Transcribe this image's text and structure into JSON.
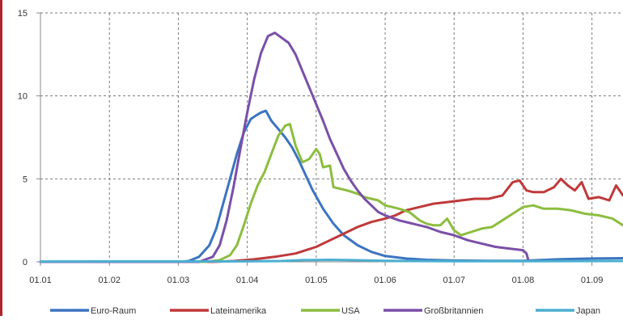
{
  "chart_data": {
    "type": "line",
    "title": "",
    "xlabel": "",
    "ylabel": "",
    "ylim": [
      0,
      15
    ],
    "yticks": [
      "0",
      "5",
      "10",
      "15"
    ],
    "xticks": [
      "01.01",
      "01.02",
      "01.03",
      "01.04",
      "01.05",
      "01.06",
      "01.07",
      "01.08",
      "01.09"
    ],
    "xlim": [
      1,
      9.45
    ],
    "grid": true,
    "legend": "bottom",
    "series": [
      {
        "name": "Euro-Raum",
        "color": "#3c74c0",
        "points": [
          [
            1,
            0
          ],
          [
            3.0,
            0
          ],
          [
            3.15,
            0.05
          ],
          [
            3.3,
            0.3
          ],
          [
            3.45,
            1.0
          ],
          [
            3.55,
            2.0
          ],
          [
            3.65,
            3.5
          ],
          [
            3.75,
            5.0
          ],
          [
            3.85,
            6.5
          ],
          [
            3.95,
            7.8
          ],
          [
            4.05,
            8.6
          ],
          [
            4.12,
            8.8
          ],
          [
            4.2,
            9.0
          ],
          [
            4.27,
            9.1
          ],
          [
            4.35,
            8.5
          ],
          [
            4.45,
            8.0
          ],
          [
            4.55,
            7.5
          ],
          [
            4.65,
            6.9
          ],
          [
            4.75,
            6.1
          ],
          [
            4.85,
            5.2
          ],
          [
            4.95,
            4.3
          ],
          [
            5.1,
            3.2
          ],
          [
            5.25,
            2.3
          ],
          [
            5.4,
            1.6
          ],
          [
            5.6,
            1.0
          ],
          [
            5.8,
            0.6
          ],
          [
            6.0,
            0.35
          ],
          [
            6.3,
            0.2
          ],
          [
            6.6,
            0.12
          ],
          [
            7.0,
            0.08
          ],
          [
            7.5,
            0.06
          ],
          [
            8.0,
            0.06
          ],
          [
            8.5,
            0.15
          ],
          [
            9.0,
            0.2
          ],
          [
            9.45,
            0.22
          ]
        ]
      },
      {
        "name": "Lateinamerika",
        "color": "#c0393a",
        "points": [
          [
            1,
            0
          ],
          [
            3.5,
            0
          ],
          [
            3.8,
            0.05
          ],
          [
            4.1,
            0.15
          ],
          [
            4.4,
            0.3
          ],
          [
            4.7,
            0.5
          ],
          [
            5.0,
            0.9
          ],
          [
            5.2,
            1.3
          ],
          [
            5.4,
            1.7
          ],
          [
            5.6,
            2.1
          ],
          [
            5.8,
            2.4
          ],
          [
            6.0,
            2.6
          ],
          [
            6.15,
            2.8
          ],
          [
            6.3,
            3.1
          ],
          [
            6.5,
            3.3
          ],
          [
            6.7,
            3.5
          ],
          [
            6.9,
            3.6
          ],
          [
            7.1,
            3.7
          ],
          [
            7.3,
            3.8
          ],
          [
            7.5,
            3.8
          ],
          [
            7.7,
            4.0
          ],
          [
            7.85,
            4.8
          ],
          [
            7.95,
            4.9
          ],
          [
            8.05,
            4.3
          ],
          [
            8.15,
            4.2
          ],
          [
            8.3,
            4.2
          ],
          [
            8.45,
            4.5
          ],
          [
            8.55,
            5.0
          ],
          [
            8.65,
            4.6
          ],
          [
            8.75,
            4.3
          ],
          [
            8.85,
            4.8
          ],
          [
            8.95,
            3.8
          ],
          [
            9.1,
            3.9
          ],
          [
            9.25,
            3.7
          ],
          [
            9.35,
            4.6
          ],
          [
            9.45,
            4.0
          ]
        ]
      },
      {
        "name": "USA",
        "color": "#8cbd3f",
        "points": [
          [
            1,
            0
          ],
          [
            3.4,
            0
          ],
          [
            3.6,
            0.1
          ],
          [
            3.75,
            0.4
          ],
          [
            3.85,
            1.0
          ],
          [
            3.95,
            2.2
          ],
          [
            4.05,
            3.5
          ],
          [
            4.15,
            4.6
          ],
          [
            4.25,
            5.4
          ],
          [
            4.35,
            6.5
          ],
          [
            4.45,
            7.6
          ],
          [
            4.55,
            8.2
          ],
          [
            4.62,
            8.3
          ],
          [
            4.7,
            7.0
          ],
          [
            4.8,
            6.0
          ],
          [
            4.9,
            6.2
          ],
          [
            5.0,
            6.8
          ],
          [
            5.05,
            6.5
          ],
          [
            5.1,
            5.7
          ],
          [
            5.2,
            5.8
          ],
          [
            5.25,
            4.5
          ],
          [
            5.35,
            4.4
          ],
          [
            5.45,
            4.3
          ],
          [
            5.6,
            4.1
          ],
          [
            5.7,
            3.9
          ],
          [
            5.8,
            3.8
          ],
          [
            5.9,
            3.7
          ],
          [
            6.0,
            3.4
          ],
          [
            6.1,
            3.3
          ],
          [
            6.2,
            3.2
          ],
          [
            6.35,
            3.0
          ],
          [
            6.5,
            2.5
          ],
          [
            6.6,
            2.3
          ],
          [
            6.7,
            2.2
          ],
          [
            6.8,
            2.2
          ],
          [
            6.9,
            2.6
          ],
          [
            7.0,
            1.9
          ],
          [
            7.1,
            1.6
          ],
          [
            7.25,
            1.8
          ],
          [
            7.4,
            2.0
          ],
          [
            7.55,
            2.1
          ],
          [
            7.7,
            2.5
          ],
          [
            7.85,
            2.9
          ],
          [
            8.0,
            3.3
          ],
          [
            8.15,
            3.4
          ],
          [
            8.3,
            3.2
          ],
          [
            8.5,
            3.2
          ],
          [
            8.7,
            3.1
          ],
          [
            8.9,
            2.9
          ],
          [
            9.1,
            2.8
          ],
          [
            9.3,
            2.6
          ],
          [
            9.45,
            2.2
          ]
        ]
      },
      {
        "name": "Großbritannien",
        "color": "#7a4fa8",
        "points": [
          [
            1,
            0
          ],
          [
            3.3,
            0
          ],
          [
            3.5,
            0.3
          ],
          [
            3.6,
            1.0
          ],
          [
            3.7,
            2.5
          ],
          [
            3.8,
            4.5
          ],
          [
            3.9,
            6.8
          ],
          [
            4.0,
            9.0
          ],
          [
            4.1,
            11.0
          ],
          [
            4.2,
            12.6
          ],
          [
            4.3,
            13.6
          ],
          [
            4.4,
            13.8
          ],
          [
            4.5,
            13.5
          ],
          [
            4.6,
            13.2
          ],
          [
            4.7,
            12.5
          ],
          [
            4.8,
            11.5
          ],
          [
            4.9,
            10.5
          ],
          [
            5.0,
            9.5
          ],
          [
            5.1,
            8.5
          ],
          [
            5.2,
            7.4
          ],
          [
            5.3,
            6.5
          ],
          [
            5.4,
            5.6
          ],
          [
            5.5,
            4.9
          ],
          [
            5.6,
            4.3
          ],
          [
            5.7,
            3.8
          ],
          [
            5.8,
            3.4
          ],
          [
            5.9,
            3.0
          ],
          [
            6.0,
            2.8
          ],
          [
            6.2,
            2.5
          ],
          [
            6.4,
            2.3
          ],
          [
            6.6,
            2.1
          ],
          [
            6.8,
            1.8
          ],
          [
            7.0,
            1.6
          ],
          [
            7.2,
            1.3
          ],
          [
            7.4,
            1.1
          ],
          [
            7.6,
            0.9
          ],
          [
            7.8,
            0.8
          ],
          [
            8.0,
            0.7
          ],
          [
            8.05,
            0.5
          ],
          [
            8.08,
            0.05
          ]
        ]
      },
      {
        "name": "Japan",
        "color": "#4bafd0",
        "points": [
          [
            1,
            0.02
          ],
          [
            4.0,
            0.03
          ],
          [
            4.5,
            0.05
          ],
          [
            4.8,
            0.1
          ],
          [
            5.2,
            0.12
          ],
          [
            5.5,
            0.1
          ],
          [
            6.0,
            0.06
          ],
          [
            7.0,
            0.04
          ],
          [
            8.0,
            0.04
          ],
          [
            9.45,
            0.05
          ]
        ]
      }
    ]
  }
}
